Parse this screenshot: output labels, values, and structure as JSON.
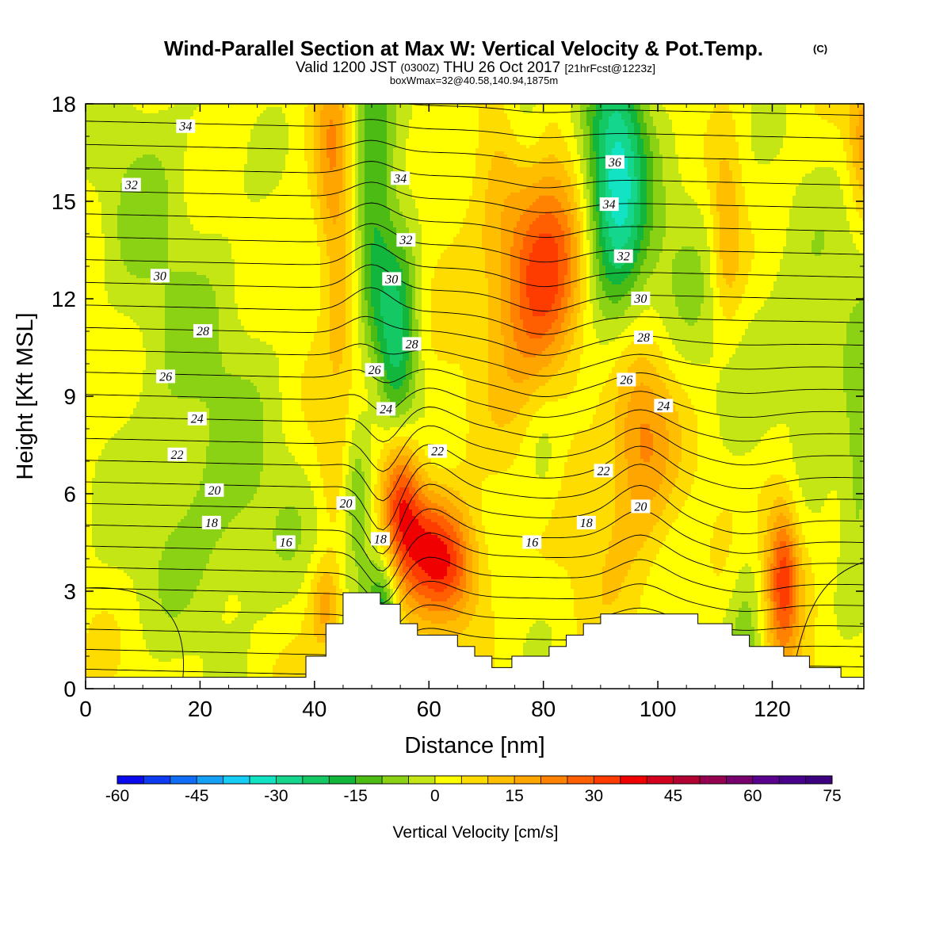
{
  "chart_data": {
    "type": "heatmap",
    "title": "Wind-Parallel Section at Max W: Vertical Velocity & Pot.Temp.",
    "copyright": "(C)",
    "subtitle_main": "Valid 1200 JST",
    "subtitle_utc": "(0300Z)",
    "subtitle_date": "THU 26 Oct 2017",
    "subtitle_fcst": "[21hrFcst@1223z]",
    "subtitle2": "boxWmax=32@40.58,140.94,1875m",
    "xlabel": "Distance [nm]",
    "ylabel": "Height [Kft MSL]",
    "xlim": [
      0,
      136
    ],
    "ylim": [
      0,
      18
    ],
    "x_ticks": [
      0,
      20,
      40,
      60,
      80,
      100,
      120
    ],
    "y_ticks": [
      0,
      3,
      6,
      9,
      12,
      15,
      18
    ],
    "colorbar": {
      "label": "Vertical Velocity [cm/s]",
      "ticks": [
        -60,
        -45,
        -30,
        -15,
        0,
        15,
        30,
        45,
        60,
        75
      ],
      "min": -60,
      "max": 75,
      "step": 5,
      "colors": [
        "#0a0aee",
        "#0d3cf2",
        "#0f6ef5",
        "#14a0f5",
        "#16cdf5",
        "#12e3c3",
        "#14d68c",
        "#14c864",
        "#12b63c",
        "#4cbc14",
        "#8cd214",
        "#c3e614",
        "#ffff00",
        "#ffdc00",
        "#ffbe00",
        "#ffa500",
        "#ff8200",
        "#ff5f00",
        "#ff3c00",
        "#f00000",
        "#d2001e",
        "#b40032",
        "#960050",
        "#78006e",
        "#5a0090",
        "#48008c",
        "#3c0080"
      ]
    },
    "w_features": [
      {
        "x": 50,
        "z": 13.5,
        "w": -22,
        "sx": 2.8,
        "sz": 5.5
      },
      {
        "x": 55,
        "z": 10.5,
        "w": -20,
        "sx": 2.4,
        "sz": 3.0
      },
      {
        "x": 93,
        "z": 16.5,
        "w": -24,
        "sx": 3.5,
        "sz": 3.0
      },
      {
        "x": 92,
        "z": 14.0,
        "w": -14,
        "sx": 4.5,
        "sz": 3.0
      },
      {
        "x": 77,
        "z": 17.5,
        "w": -15,
        "sx": 3.0,
        "sz": 1.8
      },
      {
        "x": 52,
        "z": 2.0,
        "w": -20,
        "sx": 1.8,
        "sz": 1.5
      },
      {
        "x": 47,
        "z": 6.0,
        "w": -15,
        "sx": 1.8,
        "sz": 1.5
      },
      {
        "x": 116,
        "z": 2.0,
        "w": -14,
        "sx": 2.5,
        "sz": 2.5
      },
      {
        "x": 80,
        "z": 7.0,
        "w": -8,
        "sx": 2.5,
        "sz": 1.5
      },
      {
        "x": 20,
        "z": 9.0,
        "w": -8,
        "sx": 10.0,
        "sz": 4.0
      },
      {
        "x": 25,
        "z": 4.5,
        "w": -6,
        "sx": 12.0,
        "sz": 2.0
      },
      {
        "x": 10,
        "z": 16.0,
        "w": -7,
        "sx": 6.0,
        "sz": 3.0
      },
      {
        "x": 128,
        "z": 10.5,
        "w": -8,
        "sx": 10.0,
        "sz": 3.0
      },
      {
        "x": 135,
        "z": 6.5,
        "w": -10,
        "sx": 2.0,
        "sz": 1.8
      },
      {
        "x": 105,
        "z": 13.5,
        "w": -6,
        "sx": 5.0,
        "sz": 3.0
      },
      {
        "x": 43,
        "z": 16.0,
        "w": 15,
        "sx": 2.2,
        "sz": 2.5
      },
      {
        "x": 46,
        "z": 12.0,
        "w": 12,
        "sx": 2.5,
        "sz": 3.0
      },
      {
        "x": 50,
        "z": 9.5,
        "w": 14,
        "sx": 2.0,
        "sz": 1.5
      },
      {
        "x": 55,
        "z": 6.0,
        "w": 32,
        "sx": 2.6,
        "sz": 1.6
      },
      {
        "x": 60,
        "z": 4.5,
        "w": 22,
        "sx": 4.5,
        "sz": 1.3
      },
      {
        "x": 64,
        "z": 3.5,
        "w": 18,
        "sx": 4.0,
        "sz": 1.2
      },
      {
        "x": 80,
        "z": 12.5,
        "w": 22,
        "sx": 5.0,
        "sz": 2.2
      },
      {
        "x": 77,
        "z": 14.0,
        "w": 12,
        "sx": 6.5,
        "sz": 3.5
      },
      {
        "x": 97,
        "z": 8.0,
        "w": 18,
        "sx": 4.0,
        "sz": 2.0
      },
      {
        "x": 93,
        "z": 5.0,
        "w": 6,
        "sx": 6.0,
        "sz": 2.0
      },
      {
        "x": 122,
        "z": 3.5,
        "w": 22,
        "sx": 1.8,
        "sz": 1.5
      },
      {
        "x": 120,
        "z": 3.5,
        "w": 10,
        "sx": 4.0,
        "sz": 2.5
      },
      {
        "x": 112,
        "z": 14.0,
        "w": 14,
        "sx": 2.0,
        "sz": 2.0
      },
      {
        "x": 42,
        "z": 2.5,
        "w": 16,
        "sx": 2.0,
        "sz": 1.0
      },
      {
        "x": 136,
        "z": 17.0,
        "w": 14,
        "sx": 2.0,
        "sz": 1.5
      },
      {
        "x": 44,
        "z": 6.5,
        "w": 8,
        "sx": 3.0,
        "sz": 1.5
      }
    ],
    "terrain_kft": [
      {
        "x": 0,
        "z": 0.35
      },
      {
        "x": 38.5,
        "z": 0.35
      },
      {
        "x": 38.5,
        "z": 1.0
      },
      {
        "x": 42,
        "z": 1.0
      },
      {
        "x": 42,
        "z": 2.0
      },
      {
        "x": 45,
        "z": 2.0
      },
      {
        "x": 45,
        "z": 2.95
      },
      {
        "x": 51.5,
        "z": 2.95
      },
      {
        "x": 51.5,
        "z": 2.6
      },
      {
        "x": 55,
        "z": 2.6
      },
      {
        "x": 55,
        "z": 2.0
      },
      {
        "x": 58,
        "z": 2.0
      },
      {
        "x": 58,
        "z": 1.65
      },
      {
        "x": 65,
        "z": 1.65
      },
      {
        "x": 65,
        "z": 1.3
      },
      {
        "x": 68,
        "z": 1.3
      },
      {
        "x": 68,
        "z": 1.0
      },
      {
        "x": 71,
        "z": 1.0
      },
      {
        "x": 71,
        "z": 0.65
      },
      {
        "x": 74.5,
        "z": 0.65
      },
      {
        "x": 74.5,
        "z": 1.0
      },
      {
        "x": 81,
        "z": 1.0
      },
      {
        "x": 81,
        "z": 1.3
      },
      {
        "x": 84,
        "z": 1.3
      },
      {
        "x": 84,
        "z": 1.65
      },
      {
        "x": 87,
        "z": 1.65
      },
      {
        "x": 87,
        "z": 2.0
      },
      {
        "x": 90,
        "z": 2.0
      },
      {
        "x": 90,
        "z": 2.3
      },
      {
        "x": 107,
        "z": 2.3
      },
      {
        "x": 107,
        "z": 2.0
      },
      {
        "x": 113,
        "z": 2.0
      },
      {
        "x": 113,
        "z": 1.65
      },
      {
        "x": 116,
        "z": 1.65
      },
      {
        "x": 116,
        "z": 1.3
      },
      {
        "x": 122,
        "z": 1.3
      },
      {
        "x": 122,
        "z": 1.0
      },
      {
        "x": 126.5,
        "z": 1.0
      },
      {
        "x": 126.5,
        "z": 0.65
      },
      {
        "x": 132,
        "z": 0.65
      },
      {
        "x": 132,
        "z": 0.35
      },
      {
        "x": 136,
        "z": 0.35
      }
    ],
    "theta_contours": [
      {
        "label": "16",
        "value": 16,
        "labels": [
          {
            "x": 35,
            "z": 4.5
          },
          {
            "x": 78,
            "z": 4.5
          }
        ]
      },
      {
        "label": "18",
        "value": 18,
        "labels": [
          {
            "x": 22,
            "z": 5.1
          },
          {
            "x": 51.5,
            "z": 4.6
          },
          {
            "x": 87.5,
            "z": 5.1
          }
        ]
      },
      {
        "label": "20",
        "value": 20,
        "labels": [
          {
            "x": 22.5,
            "z": 6.1
          },
          {
            "x": 45.5,
            "z": 5.7
          },
          {
            "x": 97,
            "z": 5.6
          }
        ]
      },
      {
        "label": "22",
        "value": 22,
        "labels": [
          {
            "x": 16,
            "z": 7.2
          },
          {
            "x": 61.5,
            "z": 7.3
          },
          {
            "x": 90.5,
            "z": 6.7
          }
        ]
      },
      {
        "label": "24",
        "value": 24,
        "labels": [
          {
            "x": 19.5,
            "z": 8.3
          },
          {
            "x": 52.5,
            "z": 8.6
          },
          {
            "x": 101,
            "z": 8.7
          }
        ]
      },
      {
        "label": "26",
        "value": 26,
        "labels": [
          {
            "x": 14,
            "z": 9.6
          },
          {
            "x": 50.5,
            "z": 9.8
          },
          {
            "x": 94.5,
            "z": 9.5
          }
        ]
      },
      {
        "label": "28",
        "value": 28,
        "labels": [
          {
            "x": 20.5,
            "z": 11.0
          },
          {
            "x": 57,
            "z": 10.6
          },
          {
            "x": 97.5,
            "z": 10.8
          }
        ]
      },
      {
        "label": "30",
        "value": 30,
        "labels": [
          {
            "x": 13,
            "z": 12.7
          },
          {
            "x": 53.5,
            "z": 12.6
          },
          {
            "x": 97,
            "z": 12.0
          }
        ]
      },
      {
        "label": "32",
        "value": 32,
        "labels": [
          {
            "x": 8,
            "z": 15.5
          },
          {
            "x": 56,
            "z": 13.8
          },
          {
            "x": 94,
            "z": 13.3
          }
        ]
      },
      {
        "label": "34",
        "value": 34,
        "labels": [
          {
            "x": 17.5,
            "z": 17.3
          },
          {
            "x": 55,
            "z": 15.7
          },
          {
            "x": 91.5,
            "z": 14.9
          }
        ]
      },
      {
        "label": "36",
        "value": 36,
        "labels": [
          {
            "x": 92.5,
            "z": 16.2
          }
        ]
      }
    ],
    "theta_lines_count": 30
  }
}
